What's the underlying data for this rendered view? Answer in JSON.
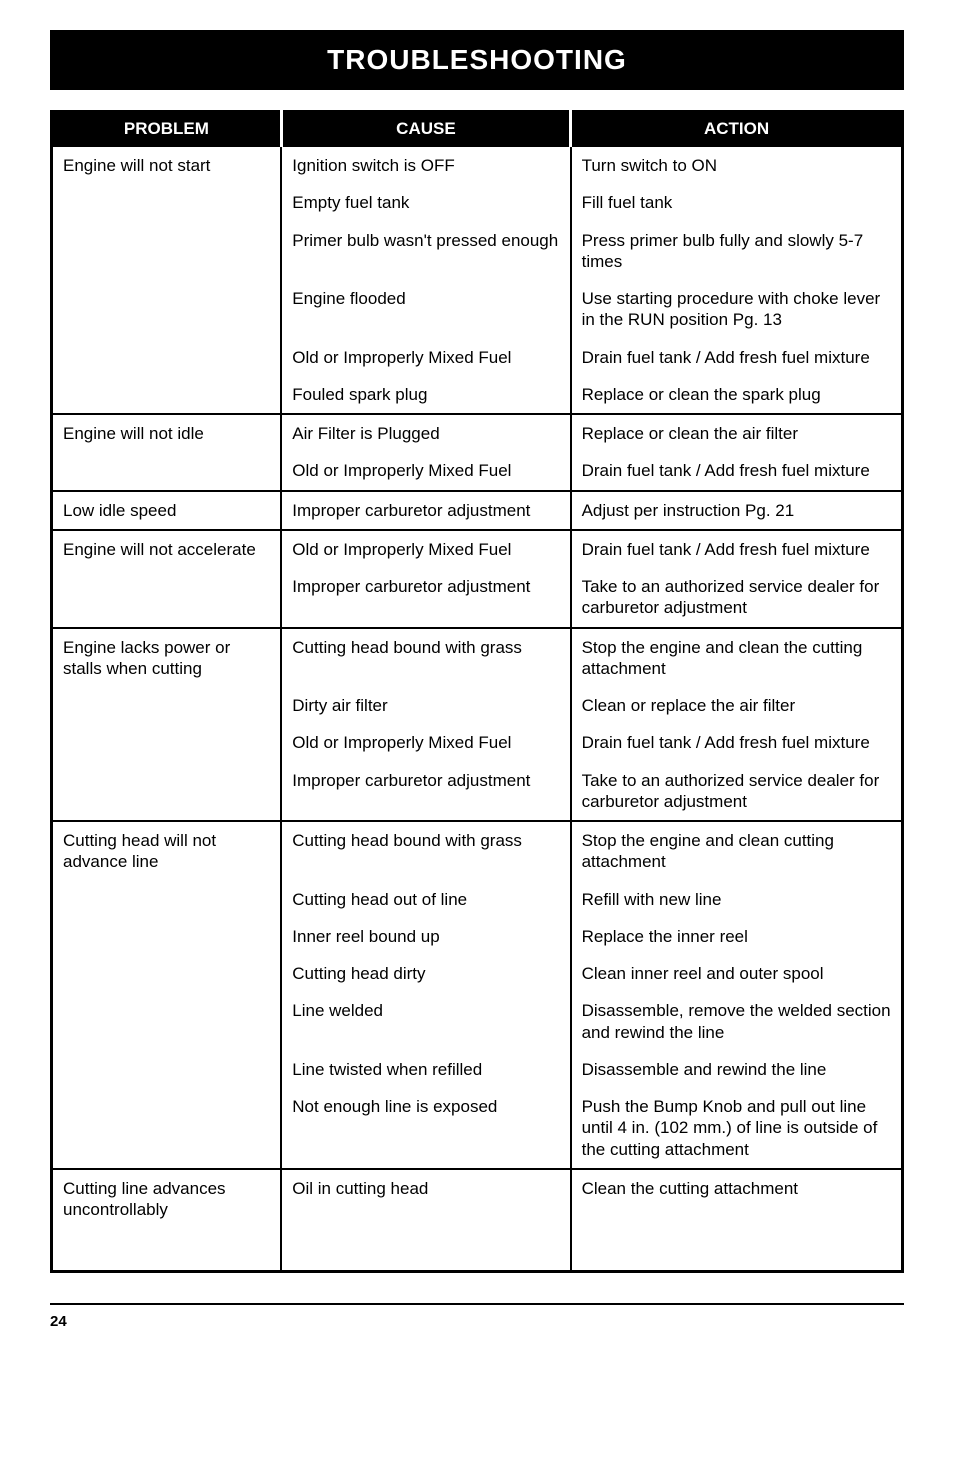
{
  "title": "TROUBLESHOOTING",
  "columns": [
    "PROBLEM",
    "CAUSE",
    "ACTION"
  ],
  "column_widths_pct": [
    27,
    34,
    39
  ],
  "colors": {
    "header_bg": "#000000",
    "header_fg": "#ffffff",
    "body_bg": "#ffffff",
    "body_fg": "#000000",
    "border": "#000000"
  },
  "typography": {
    "title_fontsize": 28,
    "title_weight": "bold",
    "header_fontsize": 17,
    "cell_fontsize": 17,
    "page_num_fontsize": 15
  },
  "groups": [
    {
      "problem": "Engine will not start",
      "rows": [
        {
          "cause": "Ignition switch is OFF",
          "action": "Turn switch to ON"
        },
        {
          "cause": "Empty fuel tank",
          "action": "Fill fuel tank"
        },
        {
          "cause": "Primer bulb wasn't pressed enough",
          "action": "Press primer bulb fully and slowly 5-7 times"
        },
        {
          "cause": "Engine flooded",
          "action": "Use starting procedure with choke lever in the RUN position Pg. 13"
        },
        {
          "cause": "Old or Improperly Mixed Fuel",
          "action": "Drain fuel tank / Add fresh fuel mixture"
        },
        {
          "cause": "Fouled spark plug",
          "action": "Replace or clean the spark plug"
        }
      ]
    },
    {
      "problem": "Engine will not idle",
      "rows": [
        {
          "cause": "Air Filter is Plugged",
          "action": "Replace or clean the air filter"
        },
        {
          "cause": "Old or Improperly Mixed Fuel",
          "action": "Drain fuel tank / Add fresh fuel mixture"
        }
      ]
    },
    {
      "problem": "Low idle speed",
      "rows": [
        {
          "cause": "Improper carburetor adjustment",
          "action": "Adjust per instruction Pg. 21"
        }
      ]
    },
    {
      "problem": "Engine will not accelerate",
      "rows": [
        {
          "cause": "Old or Improperly Mixed Fuel",
          "action": "Drain fuel tank / Add fresh fuel mixture"
        },
        {
          "cause": "Improper carburetor adjustment",
          "action": "Take to an authorized service dealer for carburetor adjustment"
        }
      ]
    },
    {
      "problem": "Engine lacks power or stalls when cutting",
      "rows": [
        {
          "cause": "Cutting head bound with grass",
          "action": "Stop the engine and clean the cutting attachment"
        },
        {
          "cause": "Dirty air filter",
          "action": "Clean or replace the air filter"
        },
        {
          "cause": "Old or Improperly Mixed Fuel",
          "action": "Drain fuel tank / Add fresh fuel mixture"
        },
        {
          "cause": "Improper carburetor adjustment",
          "action": "Take to an authorized service dealer for carburetor adjustment"
        }
      ]
    },
    {
      "problem": "Cutting head will not advance line",
      "rows": [
        {
          "cause": "Cutting head bound with grass",
          "action": "Stop the engine and clean cutting attachment"
        },
        {
          "cause": "Cutting head out of line",
          "action": "Refill with new line"
        },
        {
          "cause": "Inner reel bound up",
          "action": "Replace the inner reel"
        },
        {
          "cause": "Cutting head dirty",
          "action": "Clean inner reel and outer spool"
        },
        {
          "cause": "Line welded",
          "action": "Disassemble, remove the welded section and rewind the line"
        },
        {
          "cause": "Line twisted when refilled",
          "action": "Disassemble and rewind the line"
        },
        {
          "cause": "Not enough line is exposed",
          "action": "Push the Bump Knob and pull out line until 4 in. (102 mm.) of line is outside of the cutting attachment"
        }
      ]
    },
    {
      "problem": "Cutting line advances uncontrollably",
      "rows": [
        {
          "cause": "Oil in cutting head",
          "action": "Clean the cutting attachment"
        }
      ],
      "extra_bottom_space": true
    }
  ],
  "page_number": "24"
}
